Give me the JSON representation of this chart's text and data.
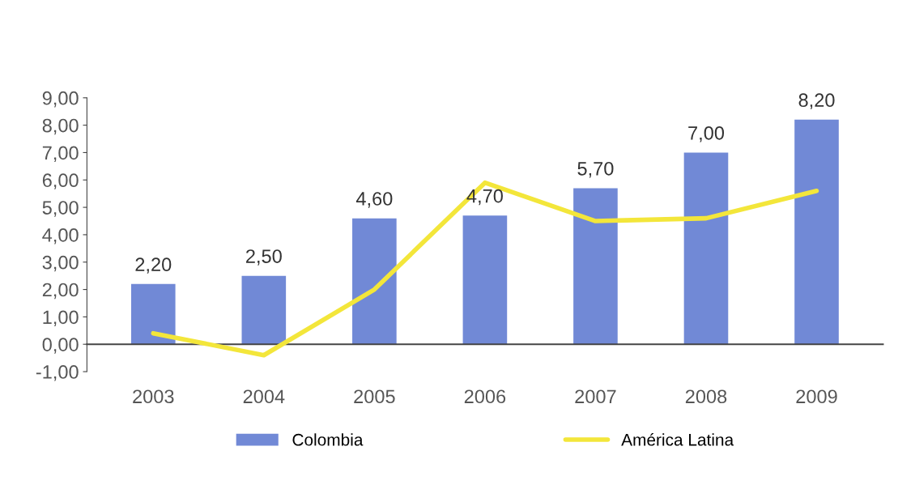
{
  "chart_data": {
    "type": "bar",
    "categories": [
      "2003",
      "2004",
      "2005",
      "2006",
      "2007",
      "2008",
      "2009"
    ],
    "series": [
      {
        "name": "Colombia",
        "color": "#7189d6",
        "values": [
          2.2,
          2.5,
          4.6,
          4.7,
          5.7,
          7.0,
          8.2
        ],
        "value_labels": [
          "2,20",
          "2,50",
          "4,60",
          "4,70",
          "5,70",
          "7,00",
          "8,20"
        ]
      },
      {
        "name": "América Latina",
        "type": "line",
        "color": "#f3e63a",
        "values": [
          0.4,
          -0.4,
          2.0,
          5.9,
          4.5,
          4.6,
          5.6
        ]
      }
    ],
    "ylim": [
      -1,
      9
    ],
    "yticks": [
      {
        "value": -1,
        "label": "-1,00"
      },
      {
        "value": 0,
        "label": "0,00"
      },
      {
        "value": 1,
        "label": "1,00"
      },
      {
        "value": 2,
        "label": "2,00"
      },
      {
        "value": 3,
        "label": "3,00"
      },
      {
        "value": 4,
        "label": "4,00"
      },
      {
        "value": 5,
        "label": "5,00"
      },
      {
        "value": 6,
        "label": "6,00"
      },
      {
        "value": 7,
        "label": "7,00"
      },
      {
        "value": 8,
        "label": "8,00"
      },
      {
        "value": 9,
        "label": "9,00"
      }
    ],
    "grid": false,
    "legend": "bottom",
    "marker": "none",
    "line_style": "solid"
  }
}
